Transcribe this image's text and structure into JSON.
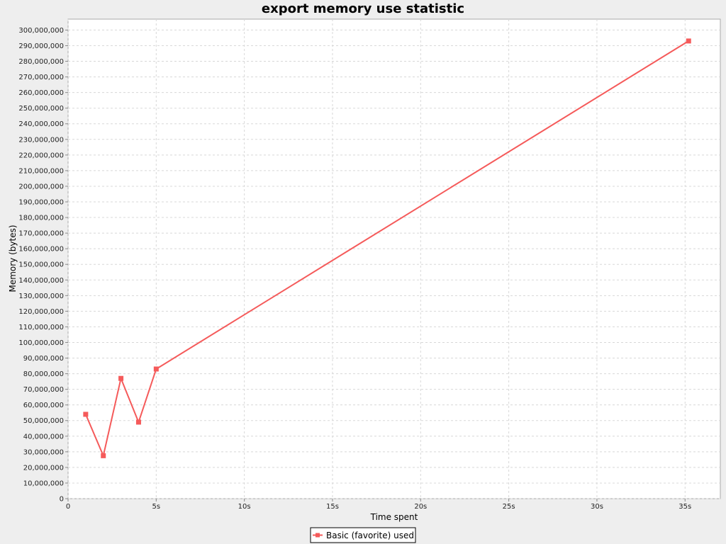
{
  "chart_data": {
    "type": "line",
    "title": "export memory use statistic",
    "xlabel": "Time spent",
    "ylabel": "Memory (bytes)",
    "xlim": [
      0,
      37
    ],
    "ylim": [
      0,
      307000000
    ],
    "x_ticks": [
      0,
      5,
      10,
      15,
      20,
      25,
      30,
      35
    ],
    "x_tick_labels": [
      "0",
      "5s",
      "10s",
      "15s",
      "20s",
      "25s",
      "30s",
      "35s"
    ],
    "y_tick_step": 10000000,
    "y_tick_max": 300000000,
    "grid": true,
    "legend_position": "bottom",
    "series": [
      {
        "name": "Basic (favorite) used",
        "color": "#f55a5a",
        "marker": "square",
        "x": [
          1,
          2,
          3,
          4,
          5,
          35.2
        ],
        "y": [
          54000000,
          27500000,
          77000000,
          49000000,
          83000000,
          293000000
        ]
      }
    ]
  }
}
